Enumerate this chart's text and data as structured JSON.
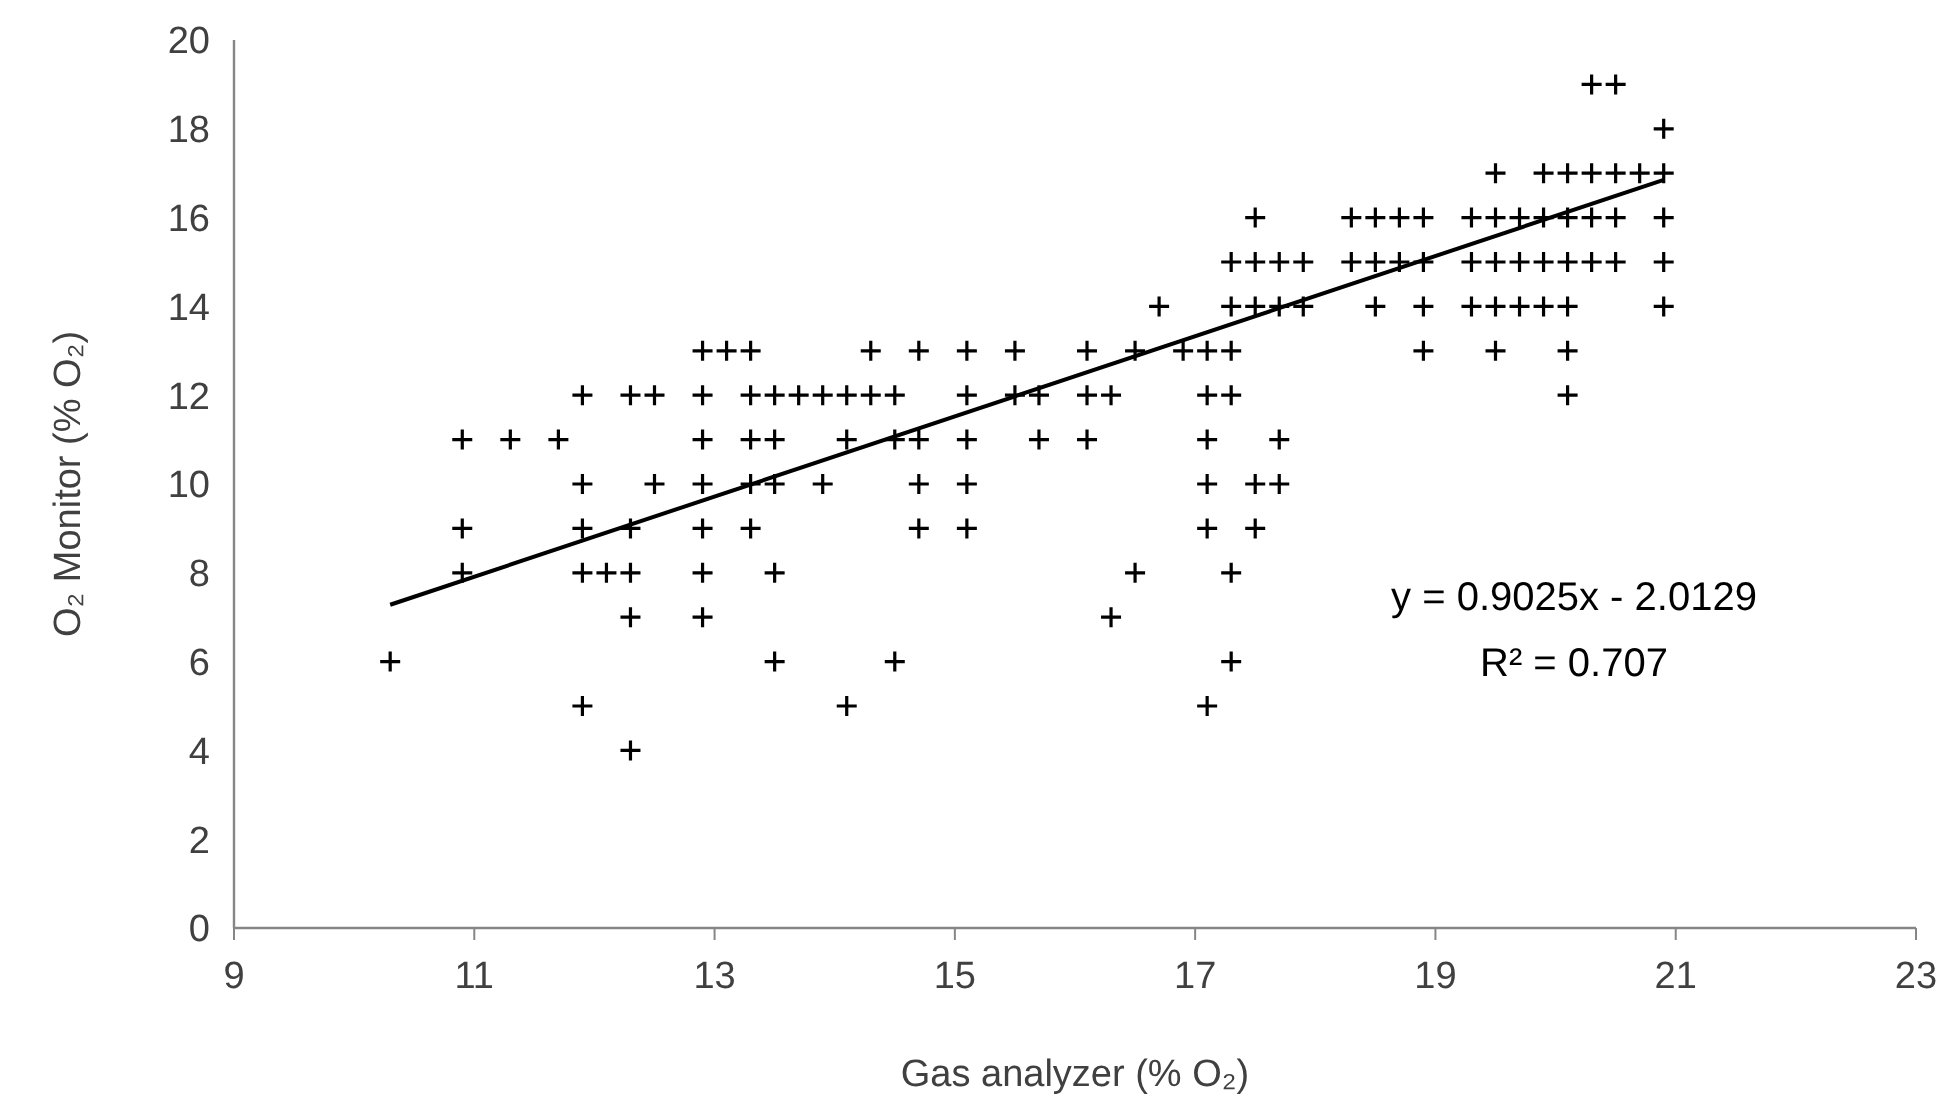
{
  "chart_data": {
    "type": "scatter",
    "xlabel": "Gas analyzer (% O₂)",
    "ylabel": "O₂ Monitor (% O₂)",
    "xlim": [
      9,
      23
    ],
    "xticks": [
      9,
      11,
      13,
      15,
      17,
      19,
      21,
      23
    ],
    "ylim": [
      0,
      20
    ],
    "yticks": [
      0,
      2,
      4,
      6,
      8,
      10,
      12,
      14,
      16,
      18,
      20
    ],
    "annotations": [
      "y = 0.9025x - 2.0129",
      "R² = 0.707"
    ],
    "series": [
      {
        "marker": "cross",
        "color": "#000000",
        "x": [
          12.9,
          13.1,
          13.3,
          14.3,
          14.7,
          15.1,
          15.5,
          16.1,
          16.5,
          16.9,
          17.1,
          17.3,
          18.9,
          19.5,
          20.1,
          11.9,
          12.3,
          12.5,
          12.9,
          13.3,
          13.5,
          13.7,
          13.9,
          14.1,
          14.3,
          14.5,
          15.1,
          15.5,
          15.7,
          16.1,
          16.3,
          17.1,
          17.3,
          20.1,
          10.9,
          11.3,
          11.7,
          12.9,
          13.3,
          13.5,
          14.1,
          14.5,
          14.7,
          15.1,
          15.7,
          16.1,
          17.1,
          17.7,
          11.9,
          12.5,
          12.9,
          13.3,
          13.5,
          13.9,
          14.7,
          15.1,
          17.1,
          17.5,
          17.7,
          10.9,
          11.9,
          12.3,
          12.9,
          13.3,
          14.7,
          15.1,
          17.1,
          17.5,
          10.9,
          11.9,
          12.1,
          12.3,
          12.9,
          13.5,
          16.5,
          17.3,
          12.3,
          12.9,
          16.3,
          10.3,
          13.5,
          14.5,
          17.3,
          11.9,
          14.1,
          17.1,
          12.3,
          16.7,
          17.3,
          17.5,
          17.7,
          17.9,
          18.5,
          18.9,
          19.3,
          19.5,
          19.7,
          19.9,
          20.1,
          20.9,
          17.3,
          17.5,
          17.7,
          17.9,
          18.3,
          18.5,
          18.7,
          18.9,
          19.3,
          19.5,
          19.7,
          19.9,
          20.1,
          20.3,
          20.5,
          20.9,
          17.5,
          18.3,
          18.5,
          18.7,
          18.9,
          19.3,
          19.5,
          19.7,
          19.9,
          20.1,
          20.3,
          20.5,
          20.9,
          19.5,
          19.9,
          20.1,
          20.3,
          20.5,
          20.7,
          20.9,
          20.9,
          20.3,
          20.5
        ],
        "values": [
          13,
          13,
          13,
          13,
          13,
          13,
          13,
          13,
          13,
          13,
          13,
          13,
          13,
          13,
          13,
          12,
          12,
          12,
          12,
          12,
          12,
          12,
          12,
          12,
          12,
          12,
          12,
          12,
          12,
          12,
          12,
          12,
          12,
          12,
          11,
          11,
          11,
          11,
          11,
          11,
          11,
          11,
          11,
          11,
          11,
          11,
          11,
          11,
          10,
          10,
          10,
          10,
          10,
          10,
          10,
          10,
          10,
          10,
          10,
          9,
          9,
          9,
          9,
          9,
          9,
          9,
          9,
          9,
          8,
          8,
          8,
          8,
          8,
          8,
          8,
          8,
          7,
          7,
          7,
          6,
          6,
          6,
          6,
          5,
          5,
          5,
          4,
          14,
          14,
          14,
          14,
          14,
          14,
          14,
          14,
          14,
          14,
          14,
          14,
          14,
          15,
          15,
          15,
          15,
          15,
          15,
          15,
          15,
          15,
          15,
          15,
          15,
          15,
          15,
          15,
          15,
          16,
          16,
          16,
          16,
          16,
          16,
          16,
          16,
          16,
          16,
          16,
          16,
          16,
          17,
          17,
          17,
          17,
          17,
          17,
          17,
          18,
          19,
          19
        ]
      },
      {
        "type": "line",
        "color": "#000000",
        "x": [
          10.3,
          20.9
        ],
        "values": [
          7.28,
          16.85
        ]
      }
    ]
  }
}
